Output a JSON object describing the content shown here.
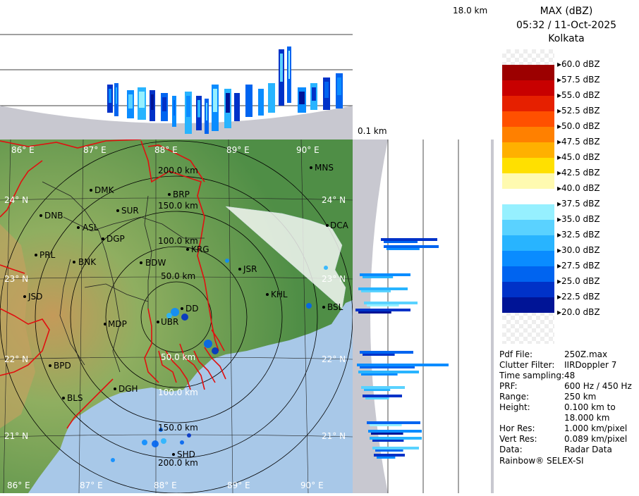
{
  "product": {
    "title": "MAX (dBZ)",
    "datetime": "05:32 / 11-Oct-2025",
    "station": "Kolkata"
  },
  "section_labels": {
    "top_height": "18.0 km",
    "side_height": "0.1 km"
  },
  "color_scale": [
    {
      "label": "60.0 dBZ",
      "color": "transparent"
    },
    {
      "label": "57.5 dBZ",
      "color": "#9c0000"
    },
    {
      "label": "55.0 dBZ",
      "color": "#c80000"
    },
    {
      "label": "52.5 dBZ",
      "color": "#e62000"
    },
    {
      "label": "50.0 dBZ",
      "color": "#ff5000"
    },
    {
      "label": "47.5 dBZ",
      "color": "#ff8000"
    },
    {
      "label": "45.0 dBZ",
      "color": "#ffb000"
    },
    {
      "label": "42.5 dBZ",
      "color": "#ffe000"
    },
    {
      "label": "40.0 dBZ",
      "color": "#fffab0"
    },
    {
      "label": "37.5 dBZ",
      "color": "#ffffff"
    },
    {
      "label": "35.0 dBZ",
      "color": "#96f0ff"
    },
    {
      "label": "32.5 dBZ",
      "color": "#5ad2ff"
    },
    {
      "label": "30.0 dBZ",
      "color": "#28b4ff"
    },
    {
      "label": "27.5 dBZ",
      "color": "#0a8cff"
    },
    {
      "label": "25.0 dBZ",
      "color": "#0064f0"
    },
    {
      "label": "22.5 dBZ",
      "color": "#0032c8"
    },
    {
      "label": "20.0 dBZ",
      "color": "#001496"
    }
  ],
  "info": [
    {
      "key": "Pdf File:",
      "value": "250Z.max"
    },
    {
      "key": "Clutter Filter:",
      "value": "IIRDoppler 7"
    },
    {
      "key": "Time sampling:",
      "value": "48"
    },
    {
      "key": "PRF:",
      "value": "600 Hz / 450 Hz"
    },
    {
      "key": "Range:",
      "value": "250 km"
    },
    {
      "key": "Height:",
      "value": "0.100 km to"
    },
    {
      "key": "",
      "value": "18.000 km"
    },
    {
      "key": "Hor Res:",
      "value": "1.000 km/pixel"
    },
    {
      "key": "Vert Res:",
      "value": "0.089 km/pixel"
    },
    {
      "key": "Data:",
      "value": "Radar Data"
    }
  ],
  "footer": "Rainbow® SELEX-SI",
  "map": {
    "lon_labels_top": [
      "86° E",
      "87° E",
      "88° E",
      "89° E",
      "90° E"
    ],
    "lon_labels_bottom": [
      "86° E",
      "87° E",
      "88° E",
      "89° E",
      "90° E"
    ],
    "lat_labels_left": [
      "24° N",
      "23° N",
      "22° N",
      "21° N"
    ],
    "lat_labels_right": [
      "24° N",
      "23° N",
      "22° N",
      "21° N"
    ],
    "range_rings_top": [
      "200.0 km",
      "150.0 km",
      "100.0 km",
      "50.0 km"
    ],
    "range_rings_bottom": [
      "50.0 km",
      "100.0 km",
      "150.0 km",
      "200.0 km"
    ],
    "stations": [
      "MNS",
      "BRP",
      "DMK",
      "SUR",
      "DNB",
      "ASL",
      "DGP",
      "KRG",
      "PRL",
      "BNK",
      "BDW",
      "JSR",
      "DCA",
      "KHL",
      "BSL",
      "JSD",
      "DD",
      "MDP",
      "UBR",
      "BPD",
      "DGH",
      "BLS",
      "SHD"
    ]
  },
  "colors": {
    "land_green": "#5e9a4a",
    "land_brown": "#c49a5a",
    "sea": "#a8c8e8",
    "border_red": "#e01010",
    "grid": "#000000",
    "panel_gray": "#c8c8d0"
  }
}
